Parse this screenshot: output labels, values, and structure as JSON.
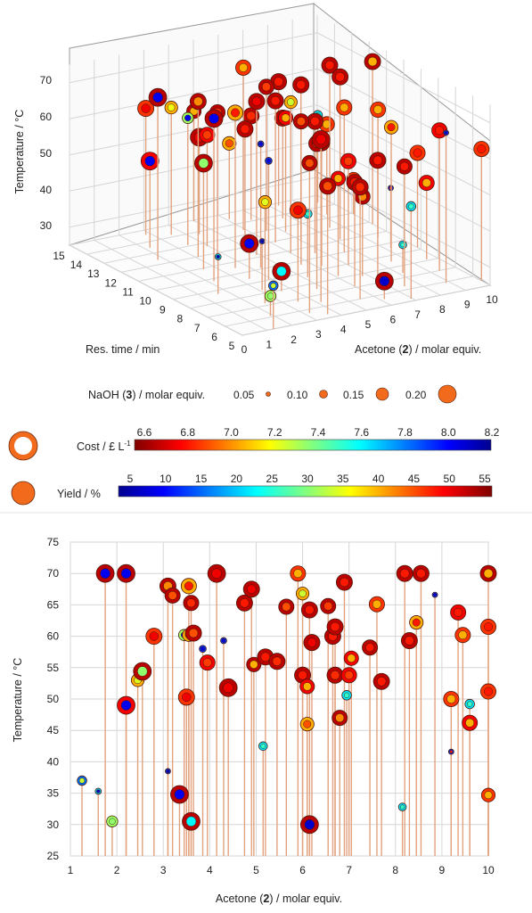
{
  "chart_data": [
    {
      "type": "scatter",
      "title": "",
      "xlabel": "Acetone (2) / molar equiv.",
      "ylabel": "Res. time / min",
      "zlabel": "Temperature / °C",
      "x_ticks": [
        "0",
        "1",
        "2",
        "3",
        "4",
        "5",
        "6",
        "7",
        "8",
        "9",
        "10"
      ],
      "y_ticks": [
        "5",
        "6",
        "7",
        "8",
        "9",
        "10",
        "11",
        "12",
        "13",
        "14",
        "15"
      ],
      "z_ticks": [
        "30",
        "40",
        "50",
        "60",
        "70"
      ],
      "grid": true
    },
    {
      "type": "legend",
      "size_legend": {
        "label_prefix": "NaOH (",
        "label_bold": "3",
        "label_suffix": ") / molar equiv.",
        "entries": [
          "0.05",
          "0.10",
          "0.15",
          "0.20"
        ]
      },
      "cost_colorbar": {
        "label": "Cost / £ L",
        "label_sup": "-1",
        "ticks": [
          "6.6",
          "6.8",
          "7.0",
          "7.2",
          "7.4",
          "7.6",
          "7.8",
          "8.0",
          "8.2"
        ],
        "range": [
          6.5,
          8.2
        ],
        "colormap": "jet-reversed"
      },
      "yield_colorbar": {
        "label": "Yield / %",
        "ticks": [
          "5",
          "10",
          "15",
          "20",
          "25",
          "30",
          "35",
          "40",
          "45",
          "50",
          "55"
        ],
        "range": [
          2,
          56
        ],
        "colormap": "jet"
      }
    },
    {
      "type": "scatter",
      "title": "",
      "xlabel_prefix": "Acetone (",
      "xlabel_bold": "2",
      "xlabel_suffix": ") / molar equiv.",
      "ylabel": "Temperature / °C",
      "xlim": [
        1,
        10
      ],
      "ylim": [
        25,
        75
      ],
      "x_ticks": [
        "1",
        "2",
        "3",
        "4",
        "5",
        "6",
        "7",
        "8",
        "9",
        "10"
      ],
      "y_ticks": [
        "25",
        "30",
        "35",
        "40",
        "45",
        "50",
        "55",
        "60",
        "65",
        "70",
        "75"
      ],
      "grid": true,
      "points": [
        {
          "x": 1.25,
          "y": 37,
          "yield": 33,
          "cost": 7.8,
          "naoh": 0.1
        },
        {
          "x": 1.6,
          "y": 35.3,
          "yield": 6,
          "cost": 7.6,
          "naoh": 0.06
        },
        {
          "x": 1.75,
          "y": 70,
          "yield": 8,
          "cost": 6.6,
          "naoh": 0.2
        },
        {
          "x": 1.9,
          "y": 30.5,
          "yield": 30,
          "cost": 7.3,
          "naoh": 0.12
        },
        {
          "x": 2.2,
          "y": 70,
          "yield": 8,
          "cost": 6.6,
          "naoh": 0.2
        },
        {
          "x": 2.2,
          "y": 49,
          "yield": 8,
          "cost": 6.7,
          "naoh": 0.2
        },
        {
          "x": 2.45,
          "y": 53,
          "yield": 34,
          "cost": 7.0,
          "naoh": 0.14
        },
        {
          "x": 2.55,
          "y": 54.4,
          "yield": 30,
          "cost": 6.6,
          "naoh": 0.2
        },
        {
          "x": 2.8,
          "y": 60,
          "yield": 50,
          "cost": 6.8,
          "naoh": 0.18
        },
        {
          "x": 3.1,
          "y": 38.5,
          "yield": 6,
          "cost": 7.9,
          "naoh": 0.05
        },
        {
          "x": 3.1,
          "y": 68,
          "yield": 42,
          "cost": 6.6,
          "naoh": 0.18
        },
        {
          "x": 3.2,
          "y": 66.5,
          "yield": 45,
          "cost": 6.6,
          "naoh": 0.17
        },
        {
          "x": 3.35,
          "y": 34.8,
          "yield": 8,
          "cost": 6.6,
          "naoh": 0.2
        },
        {
          "x": 3.45,
          "y": 60.2,
          "yield": 8,
          "cost": 7.3,
          "naoh": 0.12
        },
        {
          "x": 3.5,
          "y": 50.3,
          "yield": 50,
          "cost": 6.8,
          "naoh": 0.18
        },
        {
          "x": 3.55,
          "y": 68,
          "yield": 48,
          "cost": 7.0,
          "naoh": 0.17
        },
        {
          "x": 3.55,
          "y": 60.2,
          "yield": 35,
          "cost": 7.0,
          "naoh": 0.14
        },
        {
          "x": 3.6,
          "y": 30.5,
          "yield": 22,
          "cost": 6.6,
          "naoh": 0.2
        },
        {
          "x": 3.6,
          "y": 65.3,
          "yield": 47,
          "cost": 6.6,
          "naoh": 0.17
        },
        {
          "x": 3.65,
          "y": 60.5,
          "yield": 45,
          "cost": 6.6,
          "naoh": 0.18
        },
        {
          "x": 3.85,
          "y": 58,
          "yield": 8,
          "cost": 7.9,
          "naoh": 0.07
        },
        {
          "x": 3.95,
          "y": 55.8,
          "yield": 46,
          "cost": 6.7,
          "naoh": 0.17
        },
        {
          "x": 4.15,
          "y": 70,
          "yield": 50,
          "cost": 6.6,
          "naoh": 0.2
        },
        {
          "x": 4.3,
          "y": 59.3,
          "yield": 8,
          "cost": 7.9,
          "naoh": 0.06
        },
        {
          "x": 4.4,
          "y": 51.8,
          "yield": 50,
          "cost": 6.6,
          "naoh": 0.2
        },
        {
          "x": 4.75,
          "y": 65.3,
          "yield": 48,
          "cost": 6.6,
          "naoh": 0.18
        },
        {
          "x": 4.9,
          "y": 67.5,
          "yield": 50,
          "cost": 6.6,
          "naoh": 0.18
        },
        {
          "x": 4.95,
          "y": 55.5,
          "yield": 40,
          "cost": 6.6,
          "naoh": 0.16
        },
        {
          "x": 5.15,
          "y": 42.5,
          "yield": 25,
          "cost": 7.6,
          "naoh": 0.09
        },
        {
          "x": 5.2,
          "y": 56.7,
          "yield": 48,
          "cost": 6.6,
          "naoh": 0.18
        },
        {
          "x": 5.45,
          "y": 56,
          "yield": 47,
          "cost": 6.6,
          "naoh": 0.18
        },
        {
          "x": 5.65,
          "y": 64.7,
          "yield": 45,
          "cost": 6.6,
          "naoh": 0.17
        },
        {
          "x": 5.9,
          "y": 70,
          "yield": 40,
          "cost": 6.8,
          "naoh": 0.17
        },
        {
          "x": 6.0,
          "y": 53.8,
          "yield": 48,
          "cost": 6.6,
          "naoh": 0.18
        },
        {
          "x": 6.0,
          "y": 66.8,
          "yield": 33,
          "cost": 7.0,
          "naoh": 0.14
        },
        {
          "x": 6.1,
          "y": 46,
          "yield": 45,
          "cost": 7.0,
          "naoh": 0.15
        },
        {
          "x": 6.1,
          "y": 52,
          "yield": 40,
          "cost": 6.7,
          "naoh": 0.16
        },
        {
          "x": 6.15,
          "y": 64.2,
          "yield": 48,
          "cost": 6.6,
          "naoh": 0.18
        },
        {
          "x": 6.15,
          "y": 30,
          "yield": 6,
          "cost": 6.6,
          "naoh": 0.2
        },
        {
          "x": 6.2,
          "y": 59,
          "yield": 50,
          "cost": 6.6,
          "naoh": 0.18
        },
        {
          "x": 6.55,
          "y": 64.8,
          "yield": 46,
          "cost": 6.6,
          "naoh": 0.17
        },
        {
          "x": 6.65,
          "y": 60,
          "yield": 48,
          "cost": 6.6,
          "naoh": 0.18
        },
        {
          "x": 6.7,
          "y": 61.5,
          "yield": 48,
          "cost": 6.6,
          "naoh": 0.18
        },
        {
          "x": 6.7,
          "y": 53.8,
          "yield": 47,
          "cost": 6.6,
          "naoh": 0.18
        },
        {
          "x": 6.8,
          "y": 47,
          "yield": 42,
          "cost": 6.6,
          "naoh": 0.17
        },
        {
          "x": 6.9,
          "y": 68.6,
          "yield": 48,
          "cost": 6.6,
          "naoh": 0.18
        },
        {
          "x": 6.95,
          "y": 50.6,
          "yield": 25,
          "cost": 7.6,
          "naoh": 0.1
        },
        {
          "x": 7.0,
          "y": 53.8,
          "yield": 46,
          "cost": 6.7,
          "naoh": 0.17
        },
        {
          "x": 7.05,
          "y": 56.5,
          "yield": 40,
          "cost": 6.7,
          "naoh": 0.16
        },
        {
          "x": 7.45,
          "y": 58.2,
          "yield": 48,
          "cost": 6.6,
          "naoh": 0.17
        },
        {
          "x": 7.6,
          "y": 65.1,
          "yield": 40,
          "cost": 6.8,
          "naoh": 0.17
        },
        {
          "x": 7.7,
          "y": 52.8,
          "yield": 48,
          "cost": 6.6,
          "naoh": 0.18
        },
        {
          "x": 8.15,
          "y": 32.8,
          "yield": 25,
          "cost": 7.6,
          "naoh": 0.08
        },
        {
          "x": 8.2,
          "y": 70,
          "yield": 48,
          "cost": 6.6,
          "naoh": 0.18
        },
        {
          "x": 8.3,
          "y": 59.3,
          "yield": 48,
          "cost": 6.6,
          "naoh": 0.18
        },
        {
          "x": 8.45,
          "y": 62.2,
          "yield": 48,
          "cost": 7.0,
          "naoh": 0.15
        },
        {
          "x": 8.55,
          "y": 70,
          "yield": 48,
          "cost": 6.6,
          "naoh": 0.18
        },
        {
          "x": 8.85,
          "y": 66.6,
          "yield": 8,
          "cost": 7.9,
          "naoh": 0.05
        },
        {
          "x": 9.2,
          "y": 41.6,
          "yield": 48,
          "cost": 7.9,
          "naoh": 0.05
        },
        {
          "x": 9.2,
          "y": 50,
          "yield": 40,
          "cost": 6.8,
          "naoh": 0.17
        },
        {
          "x": 9.35,
          "y": 63.8,
          "yield": 48,
          "cost": 6.7,
          "naoh": 0.17
        },
        {
          "x": 9.45,
          "y": 60.2,
          "yield": 40,
          "cost": 6.8,
          "naoh": 0.17
        },
        {
          "x": 9.6,
          "y": 49.2,
          "yield": 25,
          "cost": 7.6,
          "naoh": 0.1
        },
        {
          "x": 9.6,
          "y": 46.2,
          "yield": 40,
          "cost": 6.7,
          "naoh": 0.17
        },
        {
          "x": 10,
          "y": 70,
          "yield": 40,
          "cost": 6.6,
          "naoh": 0.18
        },
        {
          "x": 10,
          "y": 61.5,
          "yield": 48,
          "cost": 6.8,
          "naoh": 0.17
        },
        {
          "x": 10,
          "y": 51.2,
          "yield": 48,
          "cost": 6.8,
          "naoh": 0.17
        },
        {
          "x": 10,
          "y": 34.7,
          "yield": 40,
          "cost": 6.8,
          "naoh": 0.15
        }
      ]
    }
  ]
}
